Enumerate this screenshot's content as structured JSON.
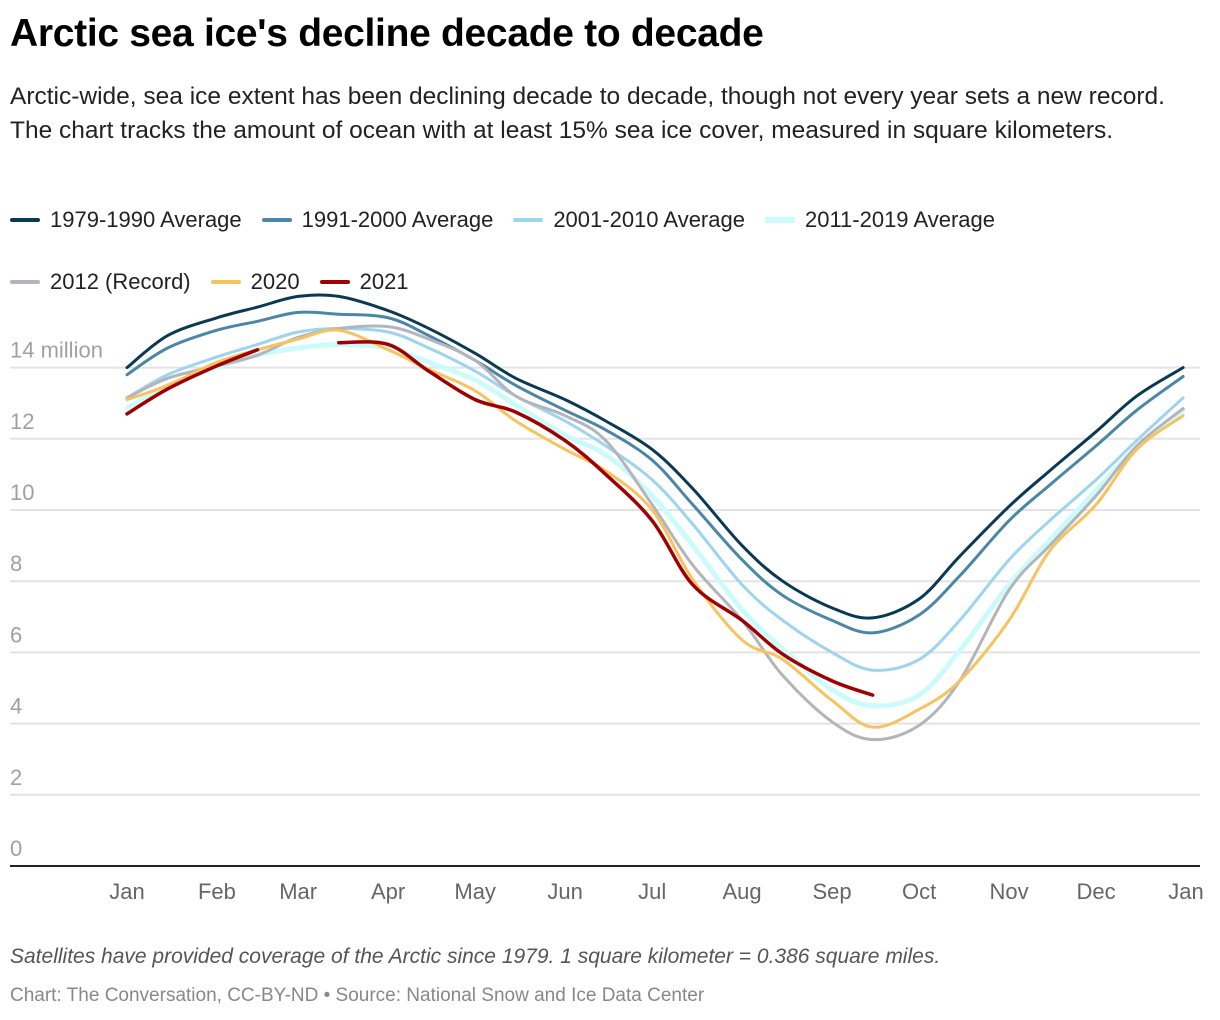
{
  "title": "Arctic sea ice's decline decade to decade",
  "subtitle": "Arctic-wide, sea ice extent has been declining decade to decade, though not every year sets a new record. The chart tracks the amount of ocean with at least 15% sea ice cover, measured in square kilometers.",
  "note": "Satellites have provided coverage of the Arctic since 1979. 1 square kilometer = 0.386 square miles.",
  "source": "Chart: The Conversation, CC-BY-ND • Source: National Snow and Ice Data Center",
  "chart_data": {
    "type": "line",
    "xlabel": "",
    "ylabel": "",
    "x_unit": "day of year",
    "ylim": [
      0,
      16
    ],
    "xlim": [
      1,
      366
    ],
    "grid": true,
    "legend_placement": "top",
    "y_ticks": [
      {
        "value": 0,
        "label": "0"
      },
      {
        "value": 2,
        "label": "2"
      },
      {
        "value": 4,
        "label": "4"
      },
      {
        "value": 6,
        "label": "6"
      },
      {
        "value": 8,
        "label": "8"
      },
      {
        "value": 10,
        "label": "10"
      },
      {
        "value": 12,
        "label": "12"
      },
      {
        "value": 14,
        "label": "14 million"
      }
    ],
    "x_ticks": [
      {
        "day": 1,
        "label": "Jan"
      },
      {
        "day": 32,
        "label": "Feb"
      },
      {
        "day": 60,
        "label": "Mar"
      },
      {
        "day": 91,
        "label": "Apr"
      },
      {
        "day": 121,
        "label": "May"
      },
      {
        "day": 152,
        "label": "Jun"
      },
      {
        "day": 182,
        "label": "Jul"
      },
      {
        "day": 213,
        "label": "Aug"
      },
      {
        "day": 244,
        "label": "Sep"
      },
      {
        "day": 274,
        "label": "Oct"
      },
      {
        "day": 305,
        "label": "Nov"
      },
      {
        "day": 335,
        "label": "Dec"
      },
      {
        "day": 366,
        "label": "Jan"
      }
    ],
    "x": [
      1,
      15,
      32,
      46,
      60,
      74,
      91,
      105,
      121,
      135,
      152,
      166,
      182,
      196,
      213,
      227,
      244,
      258,
      274,
      288,
      305,
      319,
      335,
      349,
      365
    ],
    "series": [
      {
        "name": "1979-1990 Average",
        "color": "#0a3a52",
        "width": 3,
        "values": [
          14.0,
          14.9,
          15.4,
          15.7,
          16.0,
          16.0,
          15.6,
          15.1,
          14.4,
          13.7,
          13.1,
          12.5,
          11.7,
          10.6,
          9.0,
          8.0,
          7.25,
          6.97,
          7.5,
          8.7,
          10.1,
          11.1,
          12.2,
          13.2,
          14.0
        ]
      },
      {
        "name": "1991-2000 Average",
        "color": "#4a87a6",
        "width": 3,
        "values": [
          13.8,
          14.55,
          15.05,
          15.3,
          15.55,
          15.5,
          15.4,
          14.9,
          14.2,
          13.5,
          12.8,
          12.25,
          11.4,
          10.15,
          8.6,
          7.6,
          6.9,
          6.55,
          7.05,
          8.15,
          9.7,
          10.7,
          11.8,
          12.8,
          13.75
        ]
      },
      {
        "name": "2001-2010 Average",
        "color": "#9dd4f0",
        "width": 3,
        "values": [
          13.15,
          13.8,
          14.3,
          14.65,
          15.0,
          15.1,
          15.0,
          14.55,
          13.9,
          13.2,
          12.5,
          11.8,
          10.85,
          9.6,
          7.9,
          6.9,
          6.0,
          5.5,
          5.8,
          6.9,
          8.6,
          9.7,
          10.85,
          11.95,
          13.15
        ]
      },
      {
        "name": "2011-2019 Average",
        "color": "#cbfbfb",
        "width": 5,
        "values": [
          12.85,
          13.5,
          14.0,
          14.35,
          14.55,
          14.65,
          14.55,
          14.15,
          13.65,
          12.95,
          12.1,
          11.55,
          10.4,
          9.0,
          7.2,
          6.1,
          4.95,
          4.5,
          4.8,
          6.05,
          7.9,
          9.15,
          10.55,
          11.75,
          12.8
        ]
      },
      {
        "name": "2012 (Record)",
        "color": "#b4b4bc",
        "width": 3,
        "values": [
          13.15,
          13.7,
          14.05,
          14.35,
          14.85,
          15.1,
          15.15,
          14.8,
          14.2,
          13.2,
          12.65,
          11.95,
          10.15,
          8.45,
          6.9,
          5.35,
          4.05,
          3.55,
          3.95,
          5.2,
          7.75,
          9.0,
          10.4,
          11.8,
          12.85
        ]
      },
      {
        "name": "2020",
        "color": "#f6c35e",
        "width": 3,
        "values": [
          13.1,
          13.5,
          14.15,
          14.5,
          14.8,
          15.05,
          14.5,
          13.95,
          13.35,
          12.5,
          11.7,
          11.1,
          10.0,
          8.05,
          6.35,
          5.8,
          4.65,
          3.9,
          4.4,
          5.2,
          6.9,
          8.85,
          10.15,
          11.7,
          12.65
        ]
      },
      {
        "name": "2021",
        "color": "#a00000",
        "width": 3.5,
        "values": [
          12.7,
          13.4,
          14.05,
          14.5,
          null,
          14.7,
          14.65,
          13.9,
          13.1,
          12.75,
          11.95,
          11.0,
          9.7,
          7.9,
          6.9,
          5.95,
          5.2,
          4.8,
          null,
          null,
          null,
          null,
          null,
          null,
          null
        ]
      }
    ]
  }
}
